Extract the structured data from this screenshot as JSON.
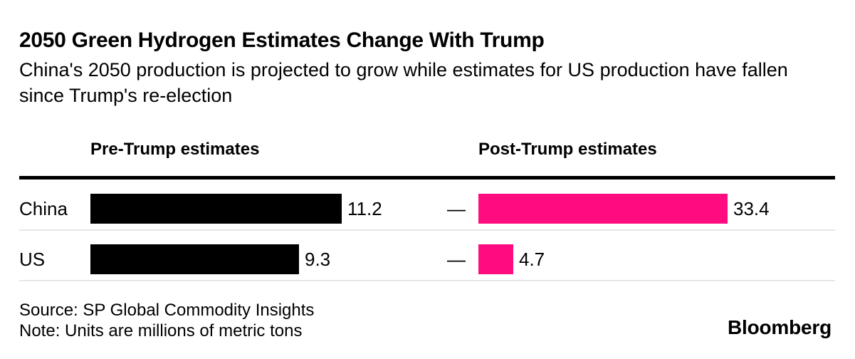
{
  "page": {
    "background": "#ffffff"
  },
  "header": {
    "title": "2050 Green Hydrogen Estimates Change With Trump",
    "subtitle": "China's 2050 production is projected to grow while estimates for US production have fallen since Trump's re-election"
  },
  "chart_data": {
    "type": "bar",
    "orientation": "horizontal",
    "categories": [
      "China",
      "US"
    ],
    "series": [
      {
        "name": "Pre-Trump estimates",
        "color": "#000000",
        "values": [
          11.2,
          9.3
        ]
      },
      {
        "name": "Post-Trump estimates",
        "color": "#ff0d80",
        "values": [
          33.4,
          4.7
        ]
      }
    ],
    "dash_separator": "—",
    "value_label_position": "right of bar",
    "column_scaling": "each column scaled independently to its own maximum",
    "units": "millions of metric tons",
    "grid": "off",
    "row_separator_color": "#e6e6e6",
    "header_rule_color": "#000000"
  },
  "footer": {
    "source": "Source: SP Global Commodity Insights",
    "note": "Note: Units are millions of metric tons",
    "logo": "Bloomberg"
  }
}
